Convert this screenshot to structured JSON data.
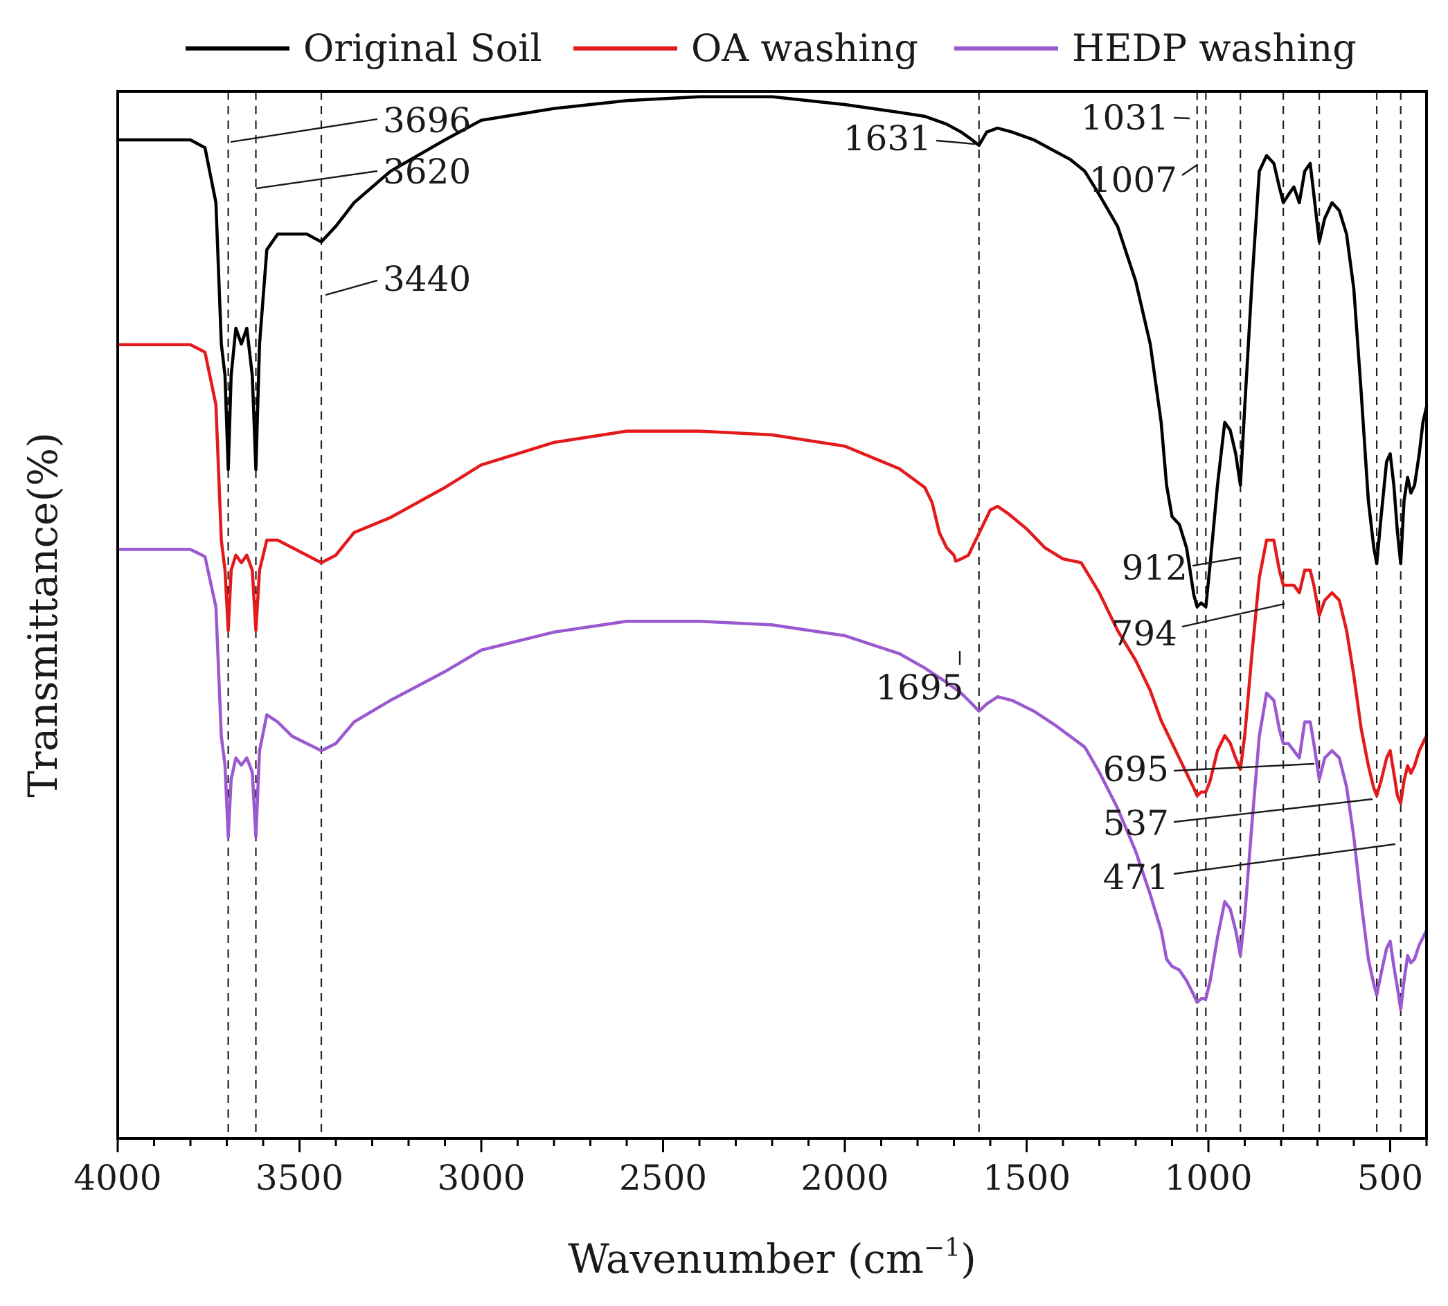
{
  "chart_data": {
    "type": "line",
    "title": "",
    "xlabel": "Wavenumber (cm",
    "xlabel_sup": "−1",
    "xlabel_close": ")",
    "ylabel": "Transmittance(%)",
    "xlim": [
      4000,
      400
    ],
    "x_reversed": true,
    "x_ticks": [
      4000,
      3500,
      3000,
      2500,
      2000,
      1500,
      1000,
      500
    ],
    "x_minor_step": 100,
    "y_ticks": [],
    "grid": false,
    "legend_position": "top-center-outside",
    "series": [
      {
        "name": "Original Soil",
        "color": "#000000",
        "points": [
          [
            4000,
            96
          ],
          [
            3800,
            96
          ],
          [
            3760,
            95
          ],
          [
            3730,
            88
          ],
          [
            3715,
            70
          ],
          [
            3705,
            66
          ],
          [
            3696,
            54
          ],
          [
            3688,
            66
          ],
          [
            3675,
            72
          ],
          [
            3660,
            70
          ],
          [
            3645,
            72
          ],
          [
            3630,
            66
          ],
          [
            3620,
            54
          ],
          [
            3610,
            70
          ],
          [
            3590,
            82
          ],
          [
            3560,
            84
          ],
          [
            3520,
            84
          ],
          [
            3480,
            84
          ],
          [
            3440,
            83
          ],
          [
            3400,
            85
          ],
          [
            3350,
            88
          ],
          [
            3250,
            92
          ],
          [
            3100,
            96
          ],
          [
            3000,
            98.5
          ],
          [
            2800,
            100
          ],
          [
            2600,
            101
          ],
          [
            2400,
            101.5
          ],
          [
            2200,
            101.5
          ],
          [
            2000,
            100.5
          ],
          [
            1850,
            99.5
          ],
          [
            1780,
            99
          ],
          [
            1720,
            98
          ],
          [
            1680,
            97
          ],
          [
            1650,
            96
          ],
          [
            1631,
            95.3
          ],
          [
            1610,
            97
          ],
          [
            1580,
            97.5
          ],
          [
            1540,
            97
          ],
          [
            1480,
            96
          ],
          [
            1420,
            94.5
          ],
          [
            1380,
            93.5
          ],
          [
            1340,
            92
          ],
          [
            1300,
            89
          ],
          [
            1250,
            85
          ],
          [
            1200,
            78
          ],
          [
            1160,
            70
          ],
          [
            1130,
            60
          ],
          [
            1115,
            52
          ],
          [
            1100,
            48
          ],
          [
            1080,
            47
          ],
          [
            1060,
            44
          ],
          [
            1040,
            38
          ],
          [
            1031,
            36.5
          ],
          [
            1020,
            37
          ],
          [
            1007,
            36.5
          ],
          [
            995,
            42
          ],
          [
            975,
            52
          ],
          [
            955,
            60
          ],
          [
            940,
            59
          ],
          [
            925,
            56
          ],
          [
            912,
            52
          ],
          [
            900,
            62
          ],
          [
            880,
            78
          ],
          [
            860,
            92
          ],
          [
            840,
            94
          ],
          [
            820,
            93
          ],
          [
            805,
            90
          ],
          [
            794,
            88
          ],
          [
            780,
            89
          ],
          [
            765,
            90
          ],
          [
            750,
            88
          ],
          [
            735,
            92
          ],
          [
            720,
            93
          ],
          [
            710,
            89
          ],
          [
            695,
            83
          ],
          [
            680,
            86
          ],
          [
            660,
            88
          ],
          [
            640,
            87
          ],
          [
            620,
            84
          ],
          [
            600,
            77
          ],
          [
            580,
            64
          ],
          [
            560,
            50
          ],
          [
            545,
            44
          ],
          [
            537,
            42
          ],
          [
            525,
            48
          ],
          [
            510,
            55
          ],
          [
            500,
            56
          ],
          [
            490,
            52
          ],
          [
            480,
            46
          ],
          [
            471,
            42
          ],
          [
            462,
            50
          ],
          [
            452,
            53
          ],
          [
            443,
            51
          ],
          [
            433,
            52
          ],
          [
            420,
            56
          ],
          [
            410,
            60
          ],
          [
            400,
            62
          ]
        ]
      },
      {
        "name": "OA washing",
        "color": "#e31a1c",
        "points": [
          [
            4000,
            96
          ],
          [
            3800,
            96
          ],
          [
            3760,
            95
          ],
          [
            3730,
            88
          ],
          [
            3715,
            70
          ],
          [
            3705,
            66
          ],
          [
            3696,
            58
          ],
          [
            3688,
            66
          ],
          [
            3675,
            68
          ],
          [
            3660,
            67
          ],
          [
            3645,
            68
          ],
          [
            3630,
            66
          ],
          [
            3620,
            58
          ],
          [
            3610,
            66
          ],
          [
            3590,
            70
          ],
          [
            3560,
            70
          ],
          [
            3520,
            69
          ],
          [
            3480,
            68
          ],
          [
            3440,
            67
          ],
          [
            3400,
            68
          ],
          [
            3350,
            71
          ],
          [
            3250,
            73
          ],
          [
            3100,
            77
          ],
          [
            3000,
            80
          ],
          [
            2800,
            83
          ],
          [
            2600,
            84.5
          ],
          [
            2400,
            84.5
          ],
          [
            2200,
            84
          ],
          [
            2000,
            82.5
          ],
          [
            1850,
            79.5
          ],
          [
            1780,
            77
          ],
          [
            1760,
            75
          ],
          [
            1740,
            71
          ],
          [
            1720,
            69
          ],
          [
            1700,
            68
          ],
          [
            1695,
            67.2
          ],
          [
            1680,
            67.5
          ],
          [
            1660,
            68
          ],
          [
            1640,
            70
          ],
          [
            1620,
            72
          ],
          [
            1600,
            74
          ],
          [
            1580,
            74.5
          ],
          [
            1550,
            73.5
          ],
          [
            1500,
            71.5
          ],
          [
            1450,
            69
          ],
          [
            1400,
            67.5
          ],
          [
            1350,
            67
          ],
          [
            1300,
            63
          ],
          [
            1250,
            58
          ],
          [
            1200,
            54
          ],
          [
            1160,
            50
          ],
          [
            1130,
            46
          ],
          [
            1100,
            43
          ],
          [
            1080,
            41
          ],
          [
            1060,
            39
          ],
          [
            1040,
            37
          ],
          [
            1031,
            36
          ],
          [
            1020,
            36.5
          ],
          [
            1007,
            36.5
          ],
          [
            995,
            38
          ],
          [
            975,
            42
          ],
          [
            955,
            44
          ],
          [
            940,
            43
          ],
          [
            925,
            41
          ],
          [
            912,
            39.5
          ],
          [
            900,
            44
          ],
          [
            880,
            55
          ],
          [
            860,
            65
          ],
          [
            840,
            70
          ],
          [
            820,
            70
          ],
          [
            805,
            66
          ],
          [
            794,
            64
          ],
          [
            780,
            64
          ],
          [
            765,
            64
          ],
          [
            750,
            63
          ],
          [
            735,
            66
          ],
          [
            720,
            66
          ],
          [
            710,
            64
          ],
          [
            695,
            60
          ],
          [
            680,
            62
          ],
          [
            660,
            63
          ],
          [
            640,
            62
          ],
          [
            620,
            58
          ],
          [
            600,
            52
          ],
          [
            580,
            45
          ],
          [
            560,
            40
          ],
          [
            545,
            37
          ],
          [
            537,
            36
          ],
          [
            525,
            38
          ],
          [
            510,
            41
          ],
          [
            500,
            42
          ],
          [
            490,
            39
          ],
          [
            480,
            36
          ],
          [
            471,
            35
          ],
          [
            462,
            38
          ],
          [
            452,
            40
          ],
          [
            443,
            39
          ],
          [
            433,
            40
          ],
          [
            420,
            42
          ],
          [
            410,
            43
          ],
          [
            400,
            44
          ]
        ]
      },
      {
        "name": "HEDP washing",
        "color": "#9b59d0",
        "points": [
          [
            4000,
            96
          ],
          [
            3800,
            96
          ],
          [
            3760,
            95
          ],
          [
            3730,
            88
          ],
          [
            3715,
            70
          ],
          [
            3705,
            66
          ],
          [
            3696,
            56
          ],
          [
            3688,
            64
          ],
          [
            3675,
            67
          ],
          [
            3660,
            66
          ],
          [
            3645,
            67
          ],
          [
            3630,
            65
          ],
          [
            3620,
            56
          ],
          [
            3610,
            68
          ],
          [
            3590,
            73
          ],
          [
            3560,
            72
          ],
          [
            3520,
            70
          ],
          [
            3480,
            69
          ],
          [
            3440,
            68
          ],
          [
            3400,
            69
          ],
          [
            3350,
            72
          ],
          [
            3250,
            75
          ],
          [
            3100,
            79
          ],
          [
            3000,
            82
          ],
          [
            2800,
            84.5
          ],
          [
            2600,
            86
          ],
          [
            2400,
            86
          ],
          [
            2200,
            85.5
          ],
          [
            2000,
            84
          ],
          [
            1850,
            81.5
          ],
          [
            1780,
            79.5
          ],
          [
            1720,
            77.5
          ],
          [
            1680,
            76
          ],
          [
            1650,
            74.5
          ],
          [
            1631,
            73.5
          ],
          [
            1610,
            74.5
          ],
          [
            1580,
            75.5
          ],
          [
            1540,
            75
          ],
          [
            1480,
            73.5
          ],
          [
            1420,
            71.5
          ],
          [
            1380,
            70
          ],
          [
            1340,
            68.5
          ],
          [
            1300,
            65
          ],
          [
            1250,
            60
          ],
          [
            1200,
            54
          ],
          [
            1160,
            48
          ],
          [
            1130,
            43
          ],
          [
            1115,
            39
          ],
          [
            1100,
            38
          ],
          [
            1080,
            37.5
          ],
          [
            1060,
            36
          ],
          [
            1040,
            34
          ],
          [
            1031,
            33
          ],
          [
            1020,
            33.5
          ],
          [
            1007,
            33.5
          ],
          [
            995,
            36
          ],
          [
            975,
            42
          ],
          [
            955,
            47
          ],
          [
            940,
            46
          ],
          [
            925,
            43
          ],
          [
            912,
            39.5
          ],
          [
            900,
            45
          ],
          [
            880,
            58
          ],
          [
            860,
            70
          ],
          [
            840,
            76
          ],
          [
            820,
            75
          ],
          [
            805,
            71
          ],
          [
            794,
            69
          ],
          [
            780,
            69
          ],
          [
            765,
            68
          ],
          [
            750,
            67
          ],
          [
            735,
            72
          ],
          [
            720,
            72
          ],
          [
            710,
            69
          ],
          [
            695,
            64
          ],
          [
            680,
            67
          ],
          [
            660,
            68
          ],
          [
            640,
            67
          ],
          [
            620,
            63
          ],
          [
            600,
            56
          ],
          [
            580,
            47
          ],
          [
            560,
            39
          ],
          [
            545,
            35.5
          ],
          [
            537,
            34
          ],
          [
            525,
            37
          ],
          [
            510,
            40.5
          ],
          [
            500,
            41.5
          ],
          [
            490,
            38
          ],
          [
            480,
            35
          ],
          [
            471,
            32
          ],
          [
            462,
            36
          ],
          [
            452,
            39.5
          ],
          [
            443,
            38.5
          ],
          [
            433,
            39
          ],
          [
            420,
            41
          ],
          [
            410,
            42
          ],
          [
            400,
            43
          ]
        ]
      }
    ],
    "reference_lines": [
      3696,
      3620,
      3440,
      1631,
      1031,
      1007,
      912,
      794,
      695,
      537,
      471
    ],
    "annotations": [
      {
        "text": "3696",
        "x": 3696
      },
      {
        "text": "3620",
        "x": 3620
      },
      {
        "text": "3440",
        "x": 3440
      },
      {
        "text": "1631",
        "x": 1631
      },
      {
        "text": "1031",
        "x": 1031
      },
      {
        "text": "1007",
        "x": 1007
      },
      {
        "text": "1695",
        "x": 1695
      },
      {
        "text": "912",
        "x": 912
      },
      {
        "text": "794",
        "x": 794
      },
      {
        "text": "695",
        "x": 695
      },
      {
        "text": "537",
        "x": 537
      },
      {
        "text": "471",
        "x": 471
      }
    ]
  }
}
